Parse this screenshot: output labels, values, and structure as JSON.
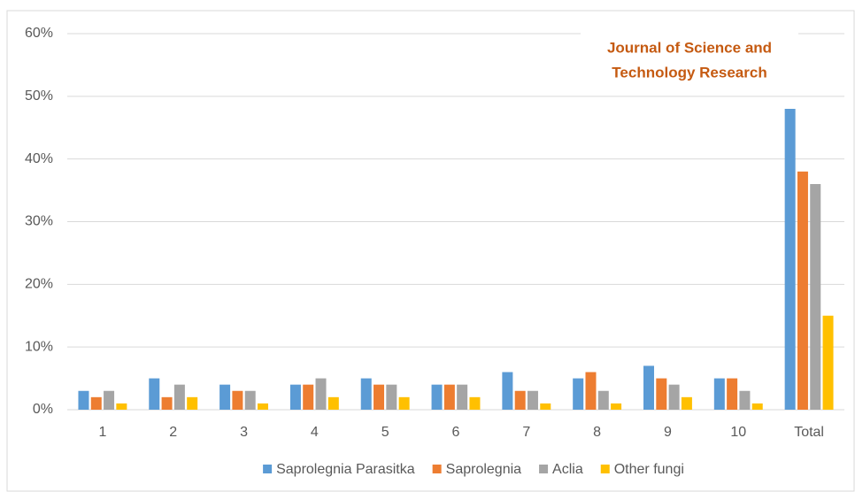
{
  "chart_data": {
    "type": "bar",
    "categories": [
      "1",
      "2",
      "3",
      "4",
      "5",
      "6",
      "7",
      "8",
      "9",
      "10",
      "Total"
    ],
    "series": [
      {
        "name": "Saprolegnia Parasitka",
        "color": "#5b9bd5",
        "values": [
          3,
          5,
          4,
          4,
          5,
          4,
          6,
          5,
          7,
          5,
          48
        ]
      },
      {
        "name": "Saprolegnia",
        "color": "#ed7d31",
        "values": [
          2,
          2,
          3,
          4,
          4,
          4,
          3,
          6,
          5,
          5,
          38
        ]
      },
      {
        "name": "Aclia",
        "color": "#a5a5a5",
        "values": [
          3,
          4,
          3,
          5,
          4,
          4,
          3,
          3,
          4,
          3,
          36
        ]
      },
      {
        "name": "Other fungi",
        "color": "#ffc000",
        "values": [
          1,
          2,
          1,
          2,
          2,
          2,
          1,
          1,
          2,
          1,
          15
        ]
      }
    ],
    "ylim": [
      0,
      60
    ],
    "yticks": [
      {
        "value": 0,
        "label": "0%"
      },
      {
        "value": 10,
        "label": "10%"
      },
      {
        "value": 20,
        "label": "20%"
      },
      {
        "value": 30,
        "label": "30%"
      },
      {
        "value": 40,
        "label": "40%"
      },
      {
        "value": 50,
        "label": "50%"
      },
      {
        "value": 60,
        "label": "60%"
      }
    ],
    "grid": true,
    "legend": "bottom",
    "annotation": [
      "Journal of Science and",
      "Technology Research"
    ]
  }
}
